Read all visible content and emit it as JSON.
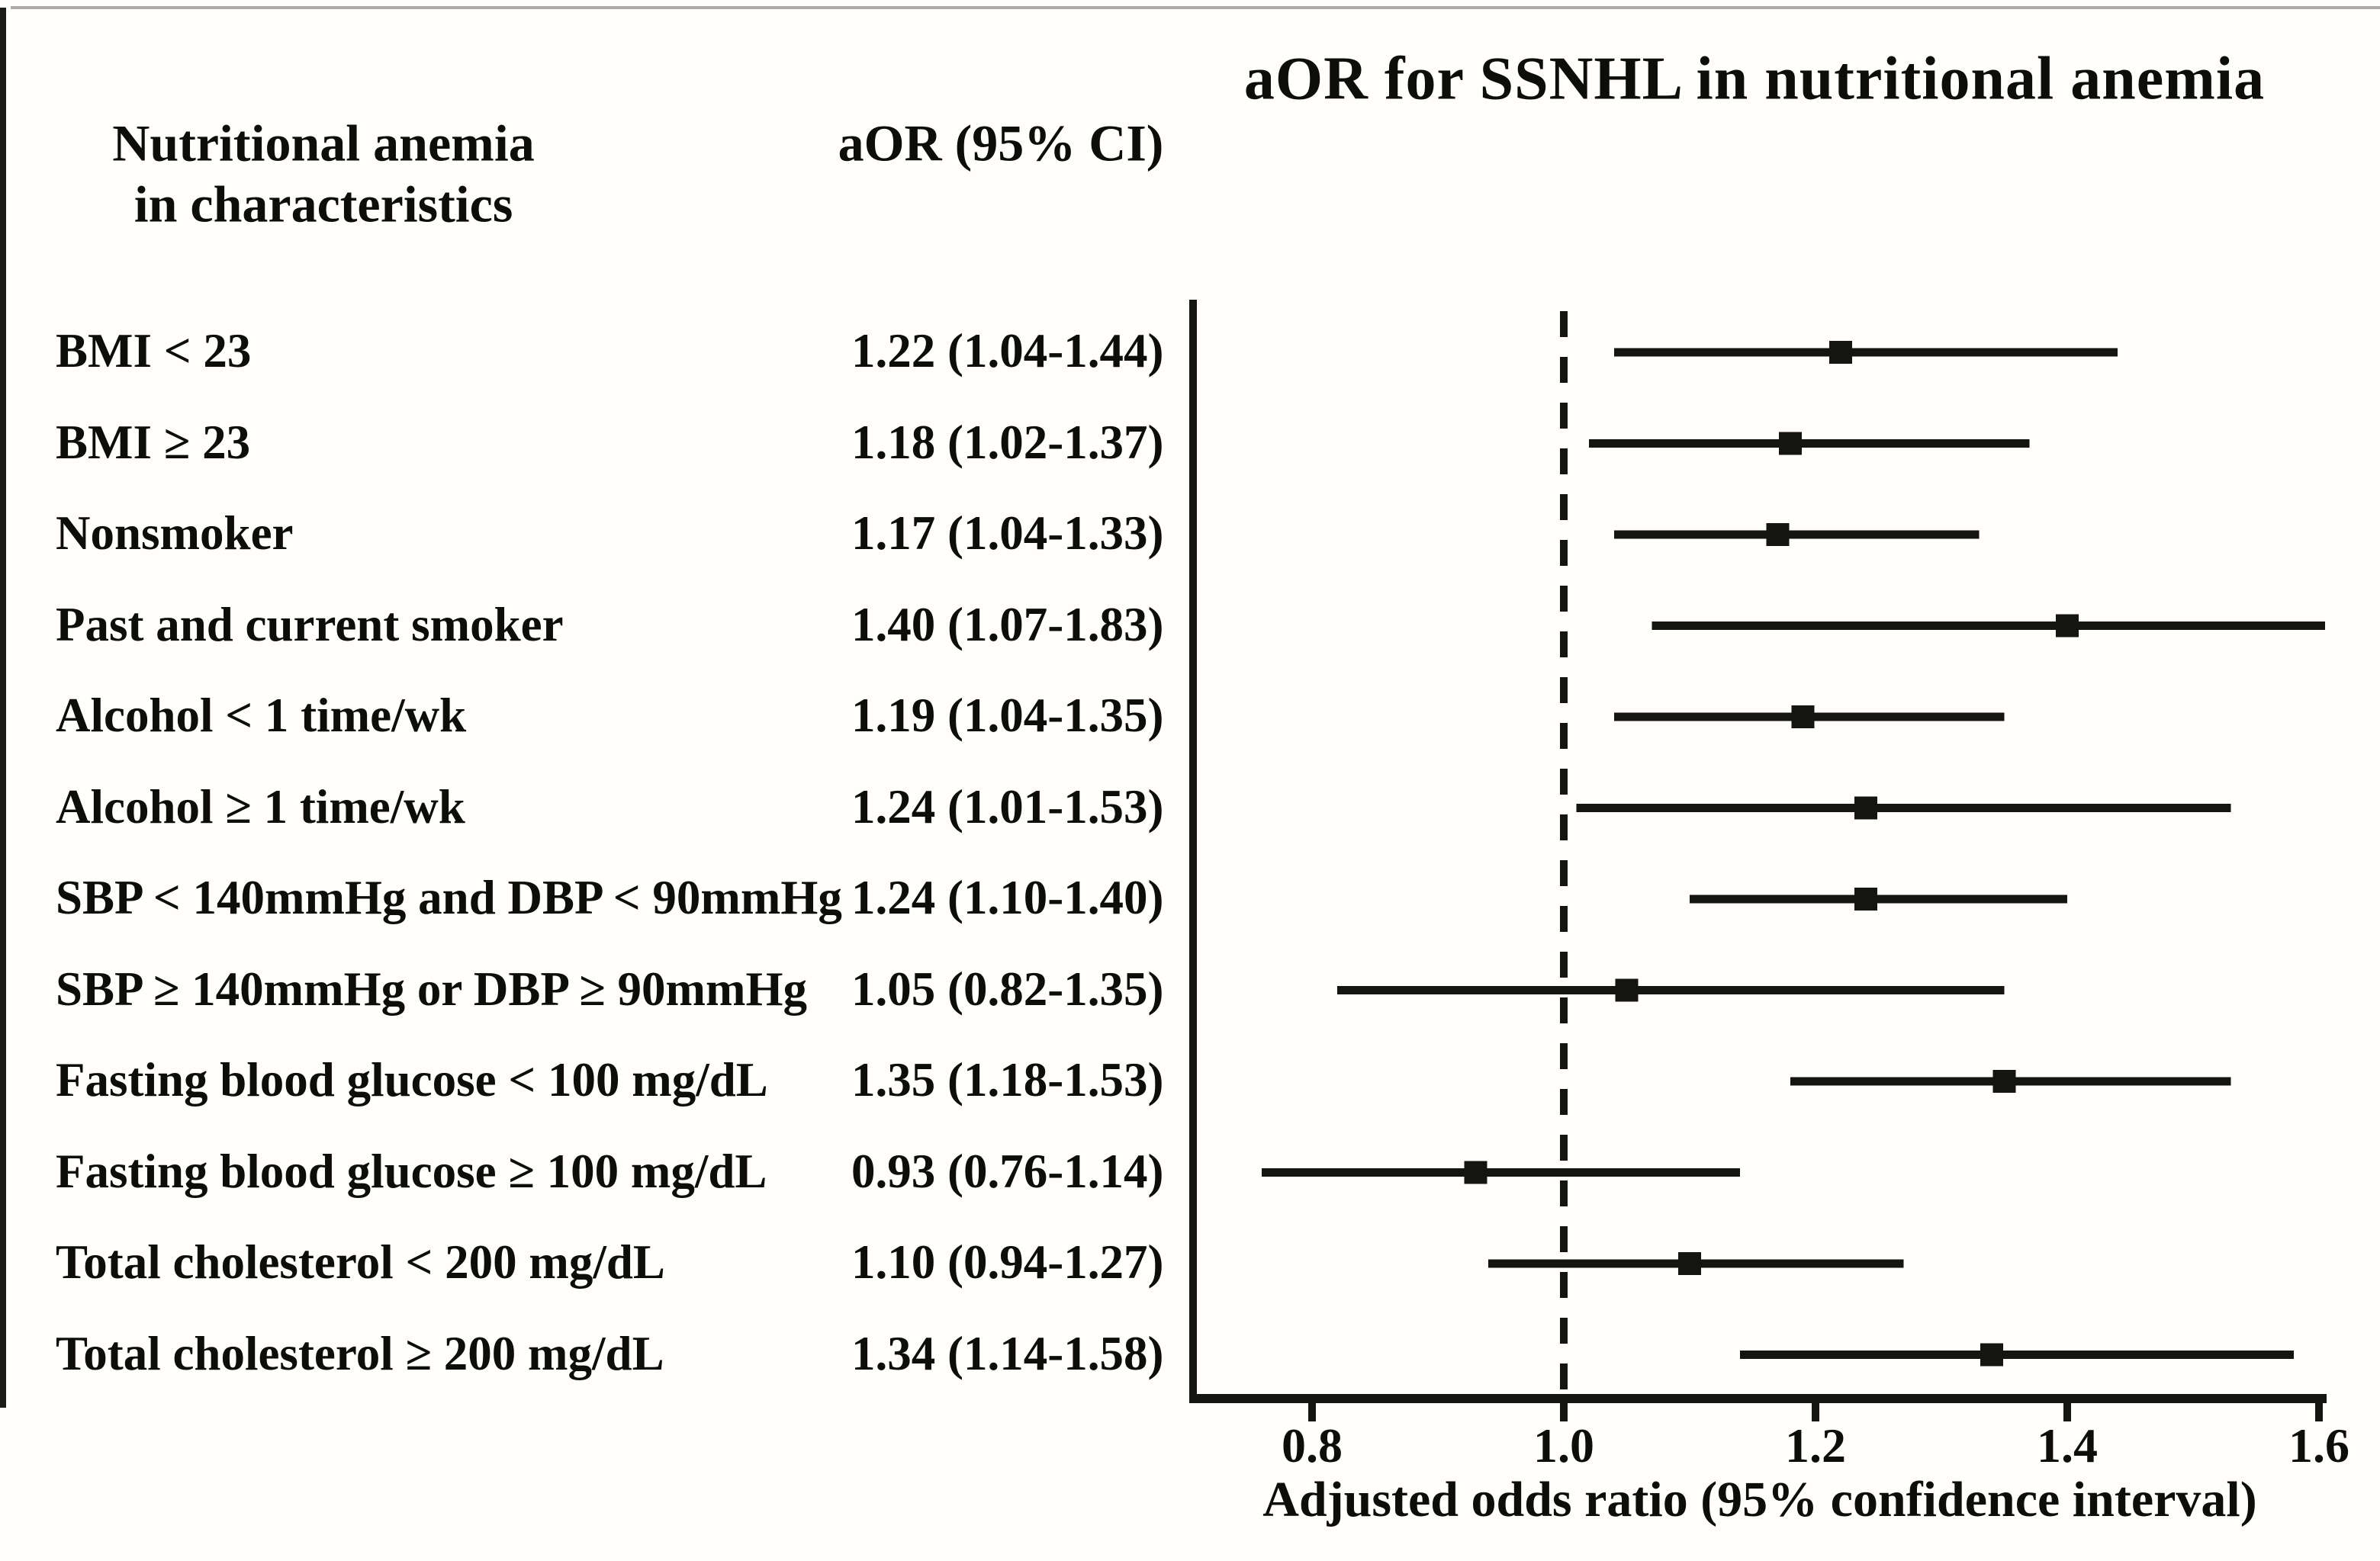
{
  "title": "aOR for SSNHL in nutritional anemia",
  "column_headers": {
    "characteristics_line1": "Nutritional anemia",
    "characteristics_line2": "in characteristics",
    "aor_ci": "aOR (95% CI)"
  },
  "chart_data": {
    "type": "forest",
    "title": "aOR for SSNHL in nutritional anemia",
    "xlabel": "Adjusted odds ratio (95% confidence interval)",
    "x_ticks": [
      0.8,
      1.0,
      1.2,
      1.4,
      1.6
    ],
    "x_tick_labels": [
      "0.8",
      "1.0",
      "1.2",
      "1.4",
      "1.6"
    ],
    "xlim": [
      0.7,
      1.61
    ],
    "reference_line": 1.0,
    "grid": false,
    "rows": [
      {
        "label": "BMI < 23",
        "ci_text": "1.22 (1.04-1.44)",
        "aor": 1.22,
        "lo": 1.04,
        "hi": 1.44
      },
      {
        "label": "BMI ≥ 23",
        "ci_text": "1.18 (1.02-1.37)",
        "aor": 1.18,
        "lo": 1.02,
        "hi": 1.37
      },
      {
        "label": "Nonsmoker",
        "ci_text": "1.17 (1.04-1.33)",
        "aor": 1.17,
        "lo": 1.04,
        "hi": 1.33
      },
      {
        "label": "Past and current smoker",
        "ci_text": "1.40 (1.07-1.83)",
        "aor": 1.4,
        "lo": 1.07,
        "hi": 1.83
      },
      {
        "label": "Alcohol < 1 time/wk",
        "ci_text": "1.19 (1.04-1.35)",
        "aor": 1.19,
        "lo": 1.04,
        "hi": 1.35
      },
      {
        "label": "Alcohol ≥ 1 time/wk",
        "ci_text": "1.24 (1.01-1.53)",
        "aor": 1.24,
        "lo": 1.01,
        "hi": 1.53
      },
      {
        "label": "SBP < 140mmHg and DBP < 90mmHg",
        "ci_text": "1.24 (1.10-1.40)",
        "aor": 1.24,
        "lo": 1.1,
        "hi": 1.4
      },
      {
        "label": "SBP ≥ 140mmHg or DBP ≥ 90mmHg",
        "ci_text": "1.05 (0.82-1.35)",
        "aor": 1.05,
        "lo": 0.82,
        "hi": 1.35
      },
      {
        "label": "Fasting blood glucose < 100 mg/dL",
        "ci_text": "1.35 (1.18-1.53)",
        "aor": 1.35,
        "lo": 1.18,
        "hi": 1.53
      },
      {
        "label": "Fasting blood glucose ≥ 100 mg/dL",
        "ci_text": "0.93 (0.76-1.14)",
        "aor": 0.93,
        "lo": 0.76,
        "hi": 1.14
      },
      {
        "label": "Total cholesterol < 200 mg/dL",
        "ci_text": "1.10 (0.94-1.27)",
        "aor": 1.1,
        "lo": 0.94,
        "hi": 1.27
      },
      {
        "label": "Total cholesterol ≥ 200 mg/dL",
        "ci_text": "1.34 (1.14-1.58)",
        "aor": 1.34,
        "lo": 1.14,
        "hi": 1.58
      }
    ]
  },
  "colors": {
    "background": "#fffefa",
    "text": "#0d0d0c",
    "line": "#141413",
    "top_border": "#aeaca7",
    "left_border": "#1c1c1b"
  }
}
